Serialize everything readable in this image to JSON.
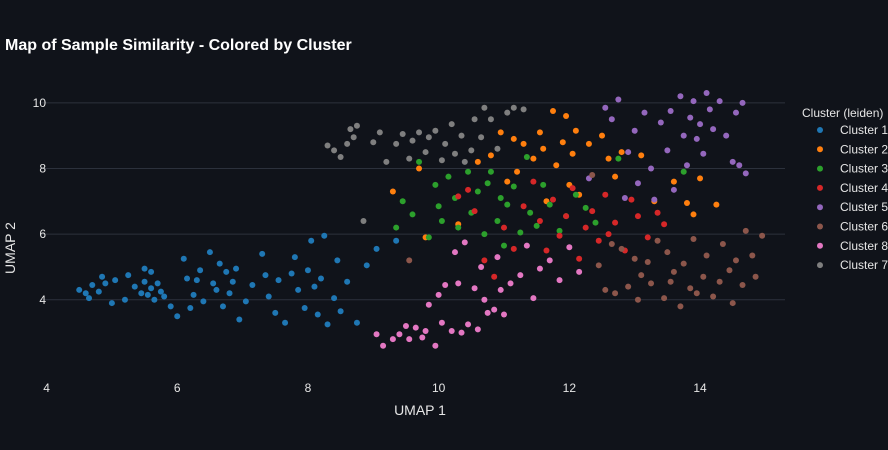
{
  "chart_data": {
    "type": "scatter",
    "title": "Map of Sample Similarity - Colored by Cluster",
    "xlabel": "UMAP 1",
    "ylabel": "UMAP 2",
    "xlim": [
      3.9,
      15.3
    ],
    "ylim": [
      1.8,
      11.0
    ],
    "xticks": [
      4,
      6,
      8,
      10,
      12,
      14
    ],
    "yticks": [
      4,
      6,
      8,
      10
    ],
    "grid": "horizontal",
    "legend": {
      "title": "Cluster (leiden)",
      "placement": "right"
    },
    "series": [
      {
        "name": "Cluster 1",
        "color": "#1f77b4",
        "x": [
          4.5,
          4.6,
          4.65,
          4.7,
          4.8,
          4.85,
          4.9,
          5.0,
          5.05,
          5.2,
          5.25,
          5.35,
          5.45,
          5.5,
          5.5,
          5.55,
          5.6,
          5.6,
          5.65,
          5.7,
          5.75,
          5.8,
          5.9,
          6.0,
          6.1,
          6.15,
          6.2,
          6.25,
          6.3,
          6.35,
          6.4,
          6.5,
          6.55,
          6.6,
          6.65,
          6.7,
          6.75,
          6.8,
          6.85,
          6.9,
          6.95,
          7.05,
          7.15,
          7.3,
          7.35,
          7.4,
          7.5,
          7.55,
          7.65,
          7.75,
          7.8,
          7.85,
          7.95,
          8.0,
          8.05,
          8.1,
          8.15,
          8.2,
          8.25,
          8.3,
          8.4,
          8.45,
          8.5,
          8.6,
          8.75,
          8.9,
          9.05,
          9.35
        ],
        "y": [
          4.3,
          4.2,
          4.05,
          4.45,
          4.25,
          4.7,
          4.5,
          3.9,
          4.6,
          4.0,
          4.75,
          4.4,
          4.2,
          4.95,
          4.55,
          4.15,
          4.85,
          4.35,
          4.0,
          4.5,
          4.25,
          4.1,
          3.8,
          3.5,
          5.25,
          4.65,
          3.75,
          4.15,
          4.6,
          4.9,
          3.95,
          5.45,
          4.5,
          4.3,
          5.1,
          3.8,
          4.85,
          4.2,
          4.55,
          4.95,
          3.4,
          3.95,
          4.45,
          5.4,
          4.75,
          4.1,
          3.6,
          4.6,
          3.3,
          4.8,
          5.3,
          4.3,
          3.75,
          4.9,
          5.8,
          4.4,
          3.55,
          4.65,
          5.95,
          3.25,
          4.05,
          5.2,
          3.65,
          4.55,
          3.3,
          5.05,
          5.55,
          5.8
        ]
      },
      {
        "name": "Cluster 2",
        "color": "#ff7f0e",
        "x": [
          9.3,
          9.7,
          9.8,
          10.3,
          10.6,
          10.8,
          10.95,
          11.05,
          11.15,
          11.2,
          11.3,
          11.45,
          11.55,
          11.6,
          11.65,
          11.75,
          11.8,
          11.9,
          11.95,
          12.0,
          12.05,
          12.1,
          12.15,
          12.3,
          12.5,
          12.6,
          12.7,
          12.8,
          13.1,
          13.3,
          13.6,
          13.8,
          13.9,
          14.0,
          14.25
        ],
        "y": [
          7.3,
          8.0,
          5.9,
          6.3,
          8.2,
          8.4,
          9.1,
          7.6,
          8.9,
          7.9,
          8.75,
          8.3,
          9.1,
          8.6,
          7.0,
          9.75,
          8.1,
          8.8,
          9.6,
          7.5,
          8.45,
          9.15,
          7.2,
          8.75,
          9.0,
          8.3,
          7.75,
          8.5,
          8.4,
          7.0,
          7.6,
          6.95,
          6.6,
          7.7,
          6.9
        ]
      },
      {
        "name": "Cluster 3",
        "color": "#2ca02c",
        "x": [
          9.35,
          9.45,
          9.6,
          9.7,
          9.85,
          9.95,
          10.0,
          10.05,
          10.15,
          10.25,
          10.3,
          10.45,
          10.5,
          10.6,
          10.7,
          10.75,
          10.8,
          10.9,
          10.95,
          11.0,
          11.05,
          11.15,
          11.25,
          11.35,
          11.4,
          11.5,
          11.6,
          11.7,
          11.85,
          11.95,
          12.1,
          12.25,
          12.4,
          12.75,
          13.75
        ],
        "y": [
          6.2,
          7.0,
          6.6,
          8.2,
          5.9,
          7.5,
          6.85,
          6.4,
          7.75,
          7.1,
          6.2,
          7.9,
          6.65,
          7.3,
          6.0,
          7.55,
          7.9,
          6.4,
          7.1,
          5.65,
          6.9,
          7.45,
          6.05,
          8.35,
          6.65,
          6.25,
          7.5,
          6.9,
          6.1,
          6.55,
          7.2,
          6.8,
          6.35,
          8.3,
          7.9
        ]
      },
      {
        "name": "Cluster 4",
        "color": "#d62728",
        "x": [
          10.3,
          10.45,
          10.55,
          10.7,
          10.85,
          11.0,
          11.15,
          11.3,
          11.45,
          11.55,
          11.65,
          11.75,
          11.85,
          11.95,
          12.05,
          12.15,
          12.25,
          12.35,
          12.45,
          12.55,
          12.6,
          12.7,
          12.85,
          12.95,
          13.05,
          13.2,
          13.35,
          13.45
        ],
        "y": [
          7.15,
          7.35,
          6.7,
          5.2,
          4.7,
          6.2,
          5.55,
          6.85,
          7.6,
          6.4,
          5.5,
          7.05,
          5.95,
          6.55,
          7.4,
          5.25,
          6.2,
          6.7,
          5.8,
          7.2,
          6.0,
          6.35,
          5.5,
          7.05,
          6.55,
          5.9,
          6.65,
          6.3
        ]
      },
      {
        "name": "Cluster 5",
        "color": "#9467bd",
        "x": [
          12.3,
          12.55,
          12.65,
          12.75,
          12.85,
          12.9,
          13.0,
          13.05,
          13.15,
          13.25,
          13.3,
          13.4,
          13.5,
          13.55,
          13.6,
          13.7,
          13.75,
          13.8,
          13.85,
          13.9,
          13.95,
          14.0,
          14.05,
          14.1,
          14.15,
          14.2,
          14.3,
          14.4,
          14.5,
          14.55,
          14.6,
          14.65,
          14.7
        ],
        "y": [
          7.7,
          9.85,
          9.5,
          10.1,
          7.1,
          8.5,
          9.15,
          7.55,
          9.7,
          8.0,
          7.05,
          9.4,
          8.55,
          9.75,
          7.35,
          10.2,
          9.0,
          8.1,
          9.55,
          10.05,
          8.9,
          9.35,
          8.45,
          10.3,
          9.8,
          9.2,
          10.05,
          9.0,
          8.2,
          9.7,
          8.1,
          10.0,
          7.85
        ]
      },
      {
        "name": "Cluster 6",
        "color": "#8c564b",
        "x": [
          9.55,
          12.35,
          12.45,
          12.55,
          12.65,
          12.7,
          12.8,
          12.9,
          13.0,
          13.05,
          13.1,
          13.2,
          13.25,
          13.35,
          13.45,
          13.5,
          13.55,
          13.6,
          13.7,
          13.75,
          13.85,
          13.9,
          13.95,
          14.05,
          14.1,
          14.2,
          14.3,
          14.35,
          14.45,
          14.5,
          14.55,
          14.65,
          14.7,
          14.8,
          14.85,
          14.95
        ],
        "y": [
          5.2,
          7.8,
          5.05,
          4.3,
          5.7,
          4.2,
          5.55,
          4.4,
          5.25,
          4.0,
          4.75,
          5.15,
          4.5,
          5.8,
          4.05,
          5.45,
          4.55,
          4.85,
          3.8,
          5.1,
          4.35,
          5.85,
          4.2,
          4.7,
          5.35,
          4.1,
          4.55,
          5.7,
          4.9,
          3.9,
          5.2,
          4.45,
          6.1,
          5.35,
          4.7,
          5.95
        ]
      },
      {
        "name": "Cluster 8",
        "color": "#e377c2",
        "x": [
          9.05,
          9.15,
          9.3,
          9.4,
          9.5,
          9.55,
          9.65,
          9.75,
          9.8,
          9.85,
          9.95,
          10.0,
          10.05,
          10.1,
          10.2,
          10.25,
          10.3,
          10.35,
          10.4,
          10.45,
          10.55,
          10.6,
          10.65,
          10.7,
          10.75,
          10.85,
          10.9,
          10.95,
          11.0,
          11.1,
          11.25,
          11.35,
          11.45,
          11.55,
          11.7,
          11.85,
          12.0,
          12.15
        ],
        "y": [
          2.95,
          2.6,
          2.8,
          2.95,
          3.2,
          2.8,
          3.15,
          2.85,
          3.05,
          3.85,
          2.6,
          4.15,
          3.3,
          4.45,
          3.05,
          5.45,
          4.5,
          3.0,
          5.75,
          3.25,
          4.35,
          3.1,
          5.0,
          4.0,
          3.6,
          3.7,
          5.3,
          4.3,
          3.55,
          4.5,
          4.75,
          5.65,
          4.05,
          4.95,
          5.2,
          4.6,
          5.6,
          4.85
        ]
      },
      {
        "name": "Cluster 7",
        "color": "#7f7f7f",
        "x": [
          8.3,
          8.4,
          8.5,
          8.6,
          8.65,
          8.7,
          8.75,
          8.85,
          9.0,
          9.1,
          9.2,
          9.35,
          9.45,
          9.55,
          9.6,
          9.7,
          9.8,
          9.85,
          9.95,
          10.05,
          10.1,
          10.2,
          10.25,
          10.35,
          10.4,
          10.5,
          10.55,
          10.65,
          10.7,
          10.8,
          10.9,
          11.05,
          11.15,
          11.3
        ],
        "y": [
          8.7,
          8.55,
          8.35,
          8.75,
          9.2,
          8.95,
          9.3,
          6.4,
          8.8,
          9.1,
          8.2,
          8.75,
          9.05,
          8.3,
          8.85,
          9.1,
          8.5,
          8.95,
          9.15,
          8.25,
          8.75,
          9.35,
          8.45,
          9.0,
          8.2,
          8.55,
          9.5,
          8.95,
          9.85,
          9.5,
          8.6,
          9.7,
          9.85,
          9.8
        ]
      }
    ]
  }
}
